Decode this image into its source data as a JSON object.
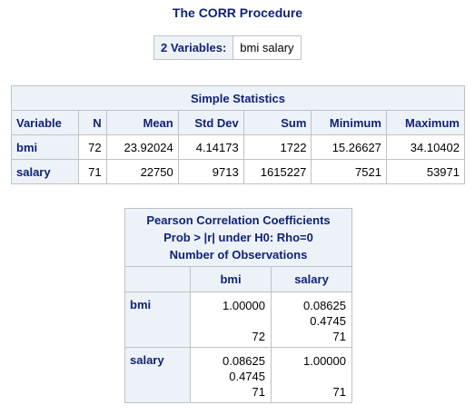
{
  "title": "The CORR Procedure",
  "variables_box": {
    "label": "2 Variables:",
    "value": "bmi salary"
  },
  "simple_stats": {
    "caption": "Simple Statistics",
    "headers": [
      "Variable",
      "N",
      "Mean",
      "Std Dev",
      "Sum",
      "Minimum",
      "Maximum"
    ],
    "rows": [
      [
        "bmi",
        "72",
        "23.92024",
        "4.14173",
        "1722",
        "15.26627",
        "34.10402"
      ],
      [
        "salary",
        "71",
        "22750",
        "9713",
        "1615227",
        "7521",
        "53971"
      ]
    ]
  },
  "pearson": {
    "caption_line1": "Pearson Correlation Coefficients",
    "caption_line2": "Prob > |r| under H0: Rho=0",
    "caption_line3": "Number of Observations",
    "col_headers": [
      "bmi",
      "salary"
    ],
    "rows": [
      {
        "name": "bmi",
        "cells": [
          {
            "coef": "1.00000",
            "prob": "",
            "n": "72"
          },
          {
            "coef": "0.08625",
            "prob": "0.4745",
            "n": "71"
          }
        ]
      },
      {
        "name": "salary",
        "cells": [
          {
            "coef": "0.08625",
            "prob": "0.4745",
            "n": "71"
          },
          {
            "coef": "1.00000",
            "prob": "",
            "n": "71"
          }
        ]
      }
    ]
  },
  "colors": {
    "header_bg": "#edf2f9",
    "header_text": "#112277",
    "border": "#c1c1c1"
  }
}
